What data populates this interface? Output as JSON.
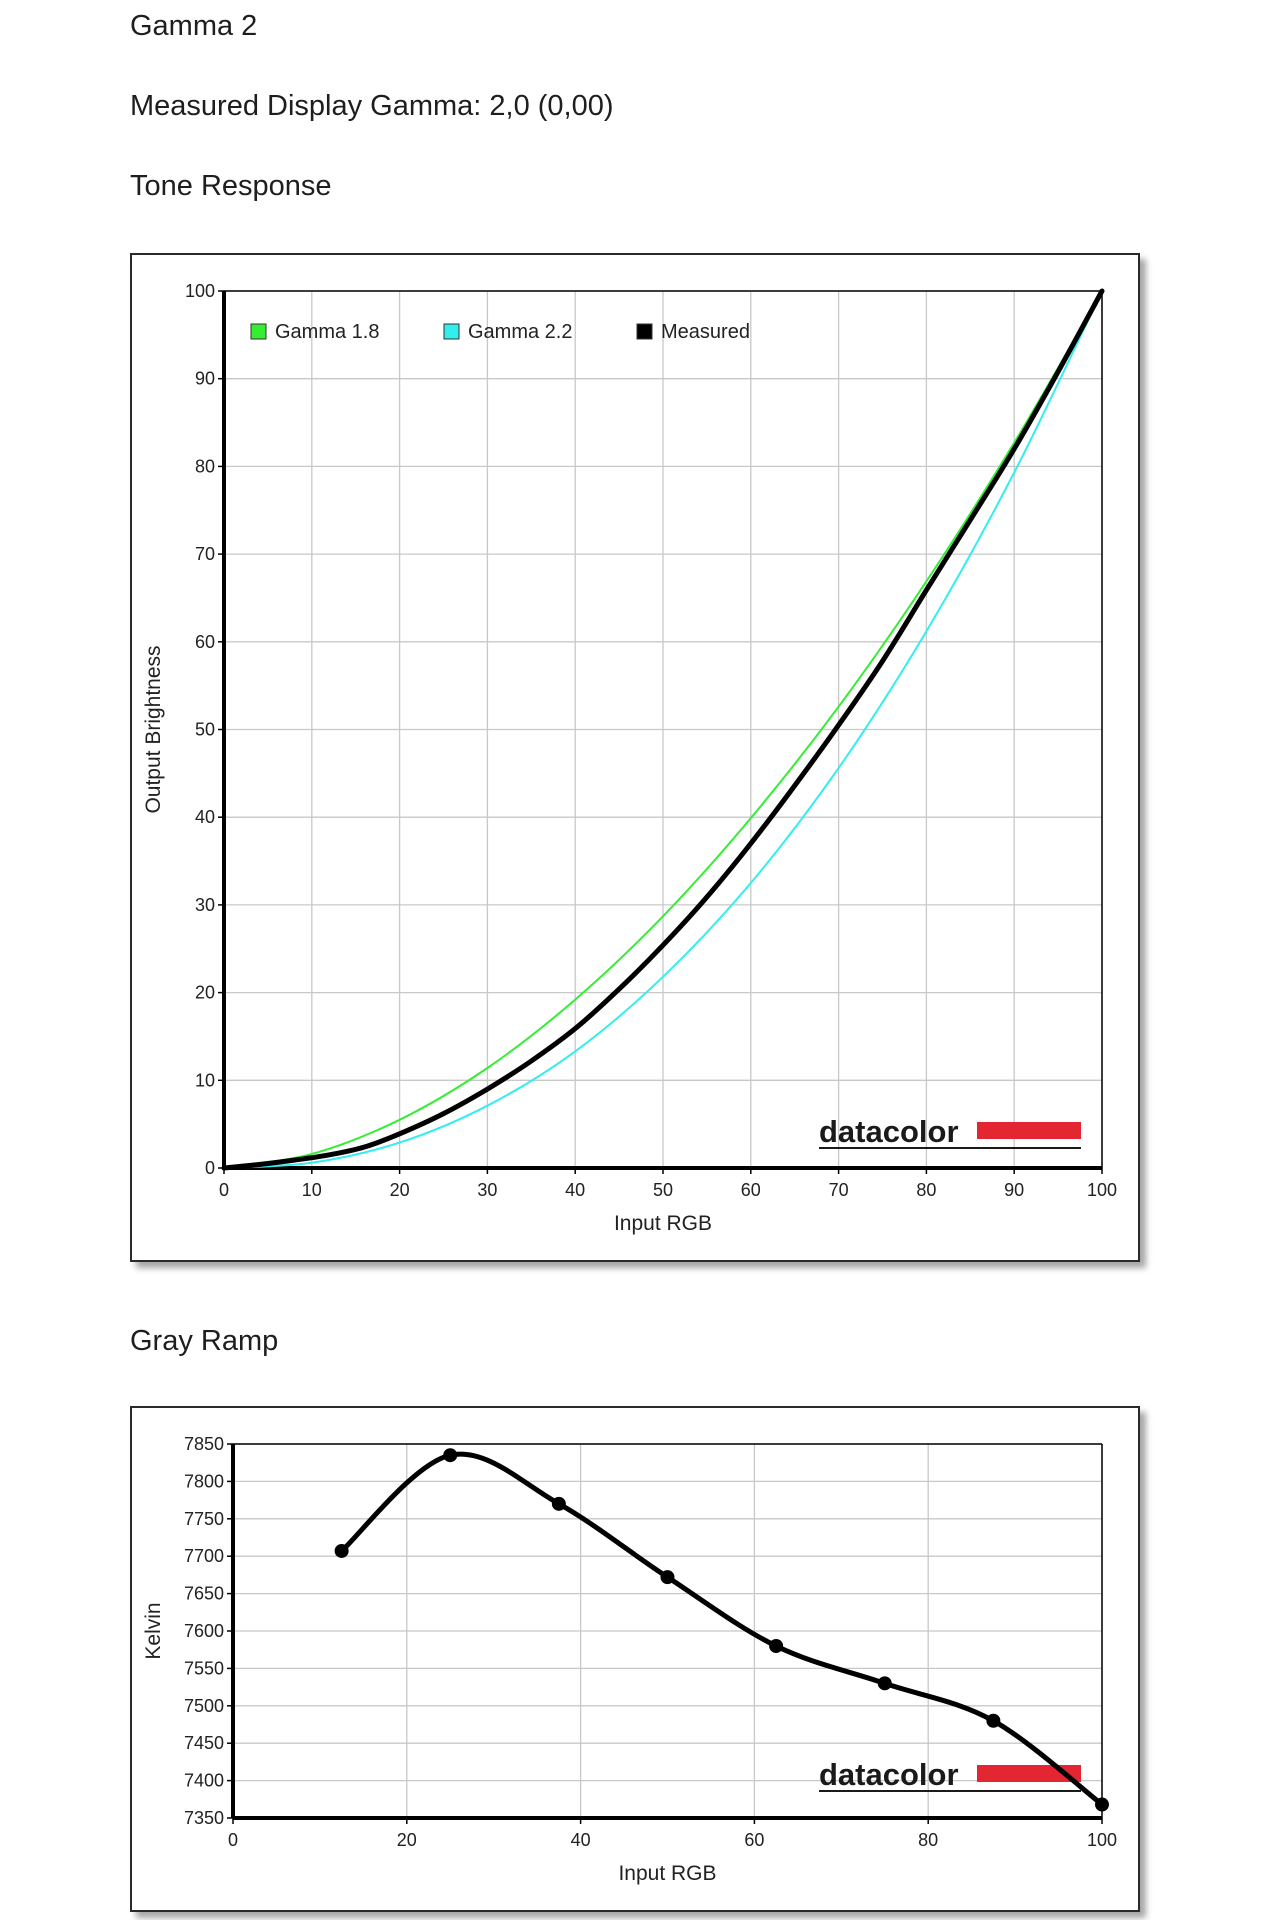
{
  "page": {
    "title": "Gamma 2",
    "measured_gamma": "Measured Display Gamma: 2,0 (0,00)",
    "tone_section": "Tone Response",
    "gray_section": "Gray Ramp",
    "brand": "datacolor",
    "brand_color": "#e32631"
  },
  "chart_data": [
    {
      "type": "line",
      "title": "Tone Response",
      "xlabel": "Input RGB",
      "ylabel": "Output Brightness",
      "xlim": [
        0,
        100
      ],
      "ylim": [
        0,
        100
      ],
      "xticks": [
        "0",
        "10",
        "20",
        "30",
        "40",
        "50",
        "60",
        "70",
        "80",
        "90",
        "100"
      ],
      "yticks": [
        "0",
        "10",
        "20",
        "30",
        "40",
        "50",
        "60",
        "70",
        "80",
        "90",
        "100"
      ],
      "grid": true,
      "legend_position": "top-left",
      "series": [
        {
          "name": "Gamma 1.8",
          "color": "#33ee33",
          "gamma": 1.8,
          "x": [
            0,
            10,
            20,
            30,
            40,
            50,
            60,
            70,
            80,
            90,
            100
          ],
          "values": [
            0,
            1.6,
            5.5,
            11.4,
            19.2,
            28.7,
            39.9,
            52.6,
            66.9,
            82.7,
            100
          ]
        },
        {
          "name": "Gamma 2.2",
          "color": "#33eeee",
          "gamma": 2.2,
          "x": [
            0,
            10,
            20,
            30,
            40,
            50,
            60,
            70,
            80,
            90,
            100
          ],
          "values": [
            0,
            0.6,
            2.9,
            7.1,
            13.3,
            21.8,
            32.5,
            45.6,
            61.2,
            79.3,
            100
          ]
        },
        {
          "name": "Measured",
          "color": "#000000",
          "x": [
            0,
            4,
            8,
            12,
            16,
            20,
            25,
            30,
            35,
            40,
            45,
            50,
            55,
            60,
            65,
            70,
            75,
            80,
            85,
            90,
            95,
            100
          ],
          "values": [
            0,
            0.4,
            0.9,
            1.5,
            2.4,
            3.9,
            6.2,
            9.0,
            12.2,
            15.9,
            20.4,
            25.4,
            30.9,
            37.0,
            43.6,
            50.5,
            57.8,
            65.9,
            73.9,
            82.0,
            90.8,
            100
          ]
        }
      ]
    },
    {
      "type": "line",
      "title": "Gray Ramp",
      "xlabel": "Input RGB",
      "ylabel": "Kelvin",
      "xlim": [
        0,
        100
      ],
      "ylim": [
        7350,
        7850
      ],
      "xticks": [
        "0",
        "20",
        "40",
        "60",
        "80",
        "100"
      ],
      "yticks": [
        "7350",
        "7400",
        "7450",
        "7500",
        "7550",
        "7600",
        "7650",
        "7700",
        "7750",
        "7800",
        "7850"
      ],
      "grid": true,
      "series": [
        {
          "color": "#000000",
          "x": [
            12.5,
            25,
            37.5,
            50,
            62.5,
            75,
            87.5,
            100
          ],
          "values": [
            7707,
            7835,
            7770,
            7672,
            7580,
            7530,
            7480,
            7368
          ]
        }
      ]
    }
  ]
}
